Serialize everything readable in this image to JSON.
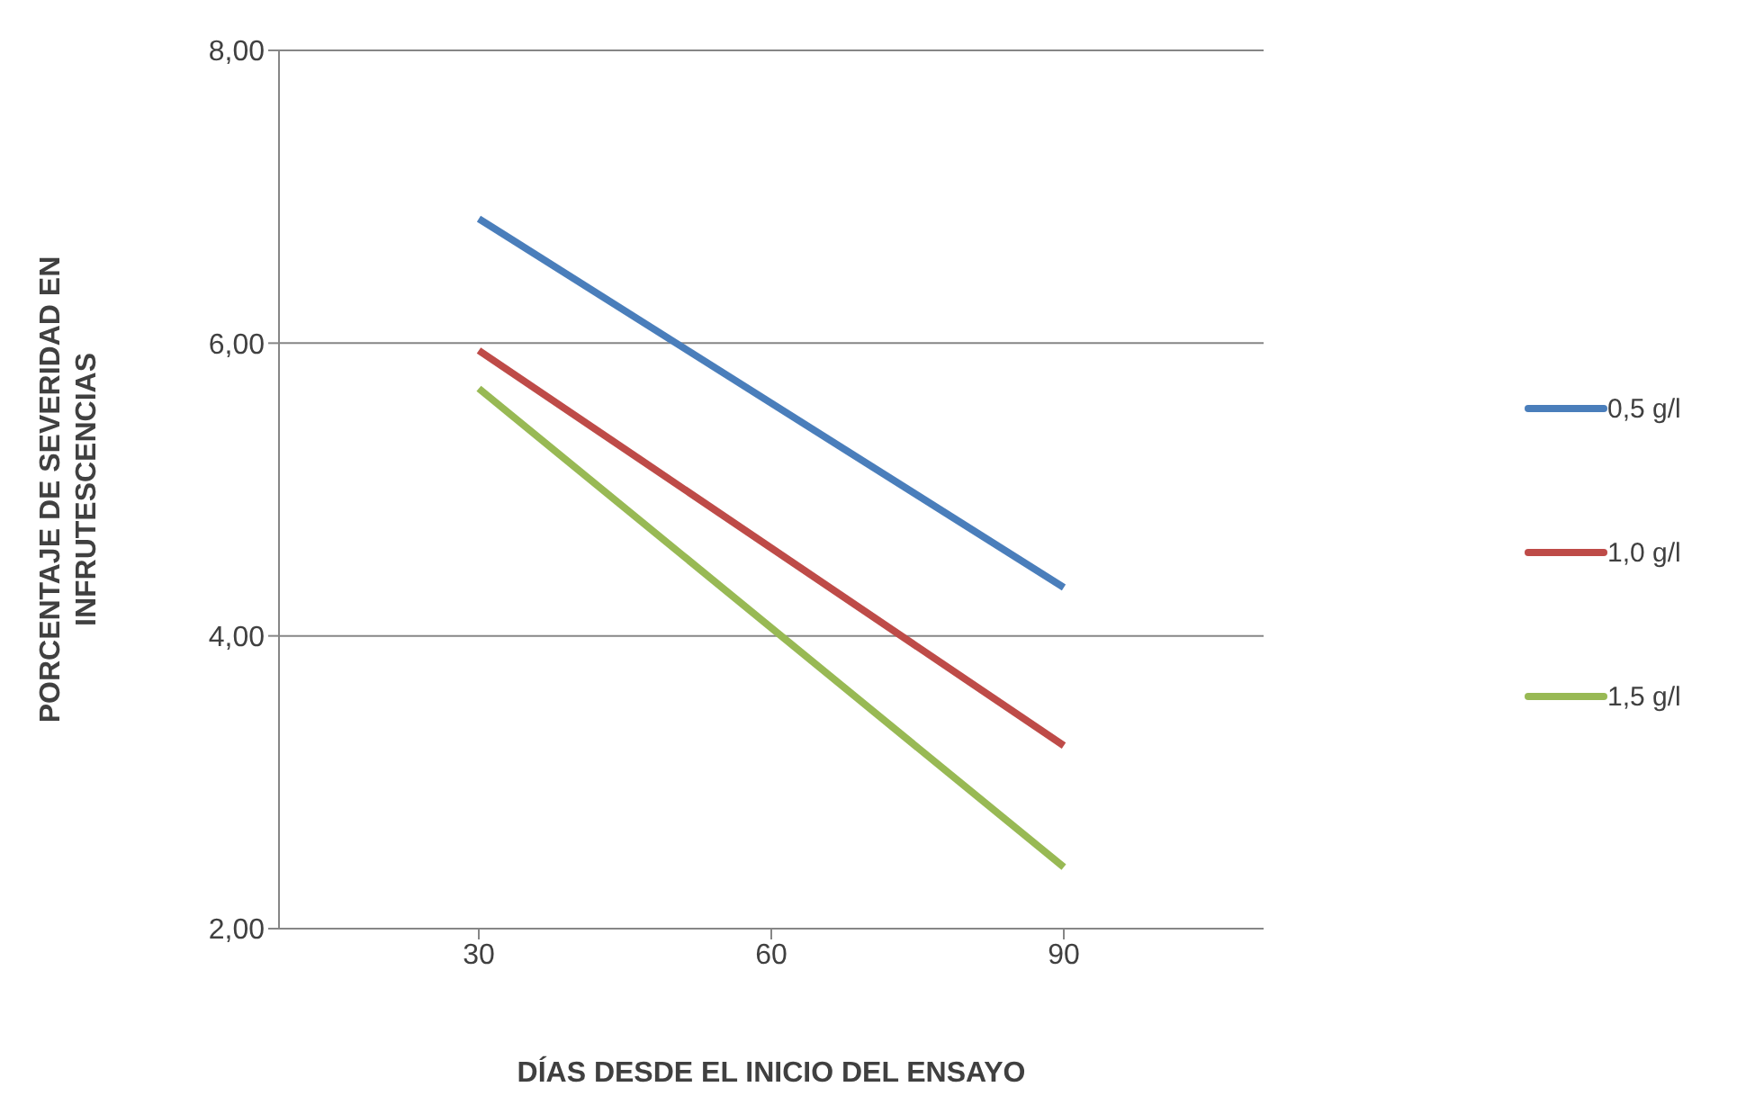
{
  "chart_data": {
    "type": "line",
    "xlabel": "DÍAS DESDE EL INICIO DEL ENSAYO",
    "ylabel": "PORCENTAJE DE SEVERIDAD EN INFRUTESCENCIAS",
    "categories": [
      "30",
      "60",
      "90"
    ],
    "series": [
      {
        "name": "0,5 g/l",
        "color": "#4a7ebb",
        "values": [
          6.85,
          null,
          4.33
        ]
      },
      {
        "name": "1,0 g/l",
        "color": "#be4b48",
        "values": [
          5.95,
          null,
          3.25
        ]
      },
      {
        "name": "1,5 g/l",
        "color": "#98b954",
        "values": [
          5.69,
          null,
          2.42
        ]
      }
    ],
    "ylim": [
      2,
      8
    ],
    "yticks": [
      {
        "value": 2,
        "label": "2,00"
      },
      {
        "value": 4,
        "label": "4,00"
      },
      {
        "value": 6,
        "label": "6,00"
      },
      {
        "value": 8,
        "label": "8,00"
      }
    ],
    "grid": "y",
    "legend": "right",
    "marker": "none",
    "line_style": "solid"
  }
}
